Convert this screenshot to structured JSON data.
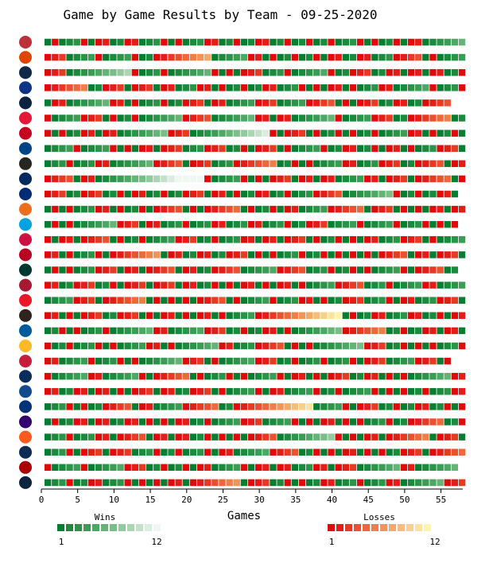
{
  "chart_data": {
    "type": "heatmap",
    "title": "Game by Game Results by Team - 09-25-2020",
    "xlabel": "Games",
    "ylabel": "",
    "xlim": [
      0,
      58
    ],
    "x_ticks": [
      0,
      5,
      10,
      15,
      20,
      25,
      30,
      35,
      40,
      45,
      50,
      55
    ],
    "grid": false,
    "teams": [
      "BOS",
      "BAL",
      "MIL",
      "CHC",
      "DET",
      "CLE",
      "CIN",
      "KC",
      "CWS",
      "MIN",
      "NYM",
      "HOU",
      "MIA",
      "ATL",
      "LAA",
      "OAK",
      "ARI",
      "PHI",
      "SD",
      "LAD",
      "PIT",
      "STL",
      "TB",
      "TOR",
      "TEX",
      "COL",
      "SF",
      "SEA",
      "WSH",
      "NYY"
    ],
    "games": [
      58,
      58,
      58,
      58,
      56,
      58,
      58,
      58,
      58,
      58,
      57,
      58,
      57,
      58,
      58,
      57,
      58,
      58,
      58,
      58,
      58,
      56,
      58,
      58,
      58,
      58,
      58,
      58,
      57,
      58
    ],
    "legend": {
      "wins": {
        "label": "Wins",
        "min_label": "1",
        "max_label": "12",
        "colors": [
          "#067d30",
          "#1a8a3c",
          "#2a9448",
          "#3a9c55",
          "#4ea865",
          "#64b377",
          "#7bbd89",
          "#93c99e",
          "#abd5b3",
          "#c3e1c9",
          "#daede0",
          "#eef7f1"
        ]
      },
      "losses": {
        "label": "Losses",
        "min_label": "1",
        "max_label": "12",
        "colors": [
          "#e00a0a",
          "#e41e17",
          "#e83a22",
          "#eb512e",
          "#ee683a",
          "#f07e48",
          "#f29458",
          "#f4a967",
          "#f6bd78",
          "#f8d08a",
          "#fae39b",
          "#fdf5ae"
        ]
      }
    }
  }
}
